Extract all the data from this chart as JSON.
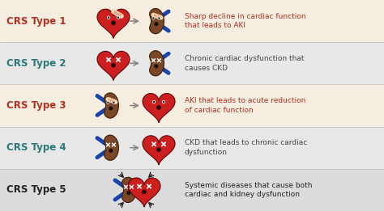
{
  "background_color": "#f5f0e8",
  "row_colors": [
    "#f5ede0",
    "#e8e8e8",
    "#f5ede0",
    "#e8e8e8",
    "#dcdcdc"
  ],
  "types": [
    "CRS Type 1",
    "CRS Type 2",
    "CRS Type 3",
    "CRS Type 4",
    "CRS Type 5"
  ],
  "type_colors": [
    "#b33020",
    "#2a7878",
    "#b33020",
    "#2a7878",
    "#222222"
  ],
  "descriptions": [
    "Sharp decline in cardiac function\nthat leads to AKI",
    "Chronic cardiac dysfunction that\ncauses CKD",
    "AKI that leads to acute reduction\nof cardiac function",
    "CKD that leads to chronic cardiac\ndysfunction",
    "Systemic diseases that cause both\ncardiac and kidney dysfunction"
  ],
  "desc_colors": [
    "#b33020",
    "#444444",
    "#b33020",
    "#444444",
    "#222222"
  ],
  "heart_color": "#cc2020",
  "kidney_color": "#7a4828",
  "artery_color": "#1a44aa",
  "fig_width": 4.74,
  "fig_height": 2.61,
  "dpi": 100
}
